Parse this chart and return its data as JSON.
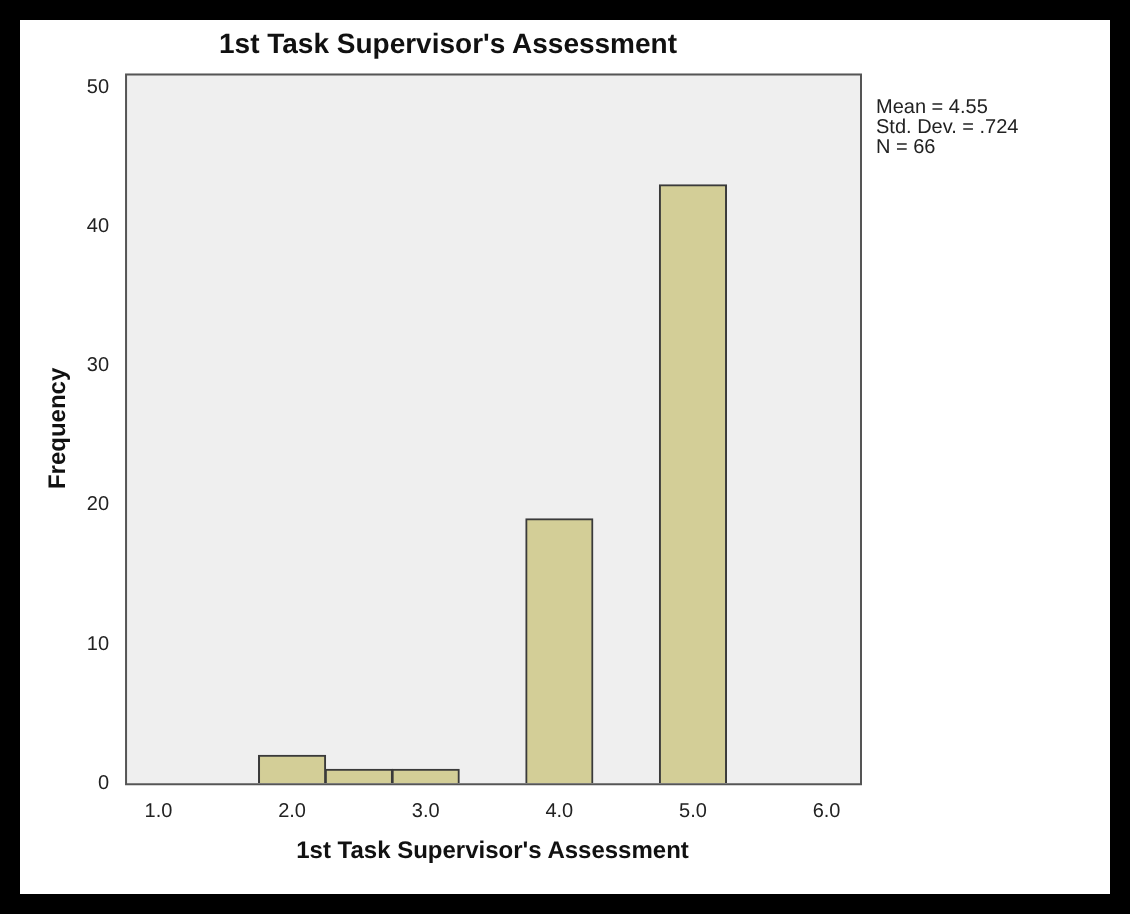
{
  "chart_data": {
    "type": "histogram",
    "title": "1st Task Supervisor's Assessment",
    "xlabel": "1st Task Supervisor's Assessment",
    "ylabel": "Frequency",
    "bins": [
      1.75,
      2.25,
      2.75,
      3.25,
      3.75,
      4.25,
      4.75,
      5.25
    ],
    "values": [
      2,
      1,
      1,
      0,
      19,
      0,
      43
    ],
    "color": "#d3ce97",
    "xlim": [
      0.75,
      6.25
    ],
    "xticks": [
      {
        "value": 1,
        "label": "1.0"
      },
      {
        "value": 2,
        "label": "2.0"
      },
      {
        "value": 3,
        "label": "3.0"
      },
      {
        "value": 4,
        "label": "4.0"
      },
      {
        "value": 5,
        "label": "5.0"
      },
      {
        "value": 6,
        "label": "6.0"
      }
    ],
    "ylim": [
      0,
      51
    ],
    "yticks": [
      0,
      10,
      20,
      30,
      40,
      50
    ],
    "grid": false,
    "legend": false,
    "annotations": [
      "Mean = 4.55",
      "Std. Dev. = .724",
      "N = 66"
    ]
  }
}
